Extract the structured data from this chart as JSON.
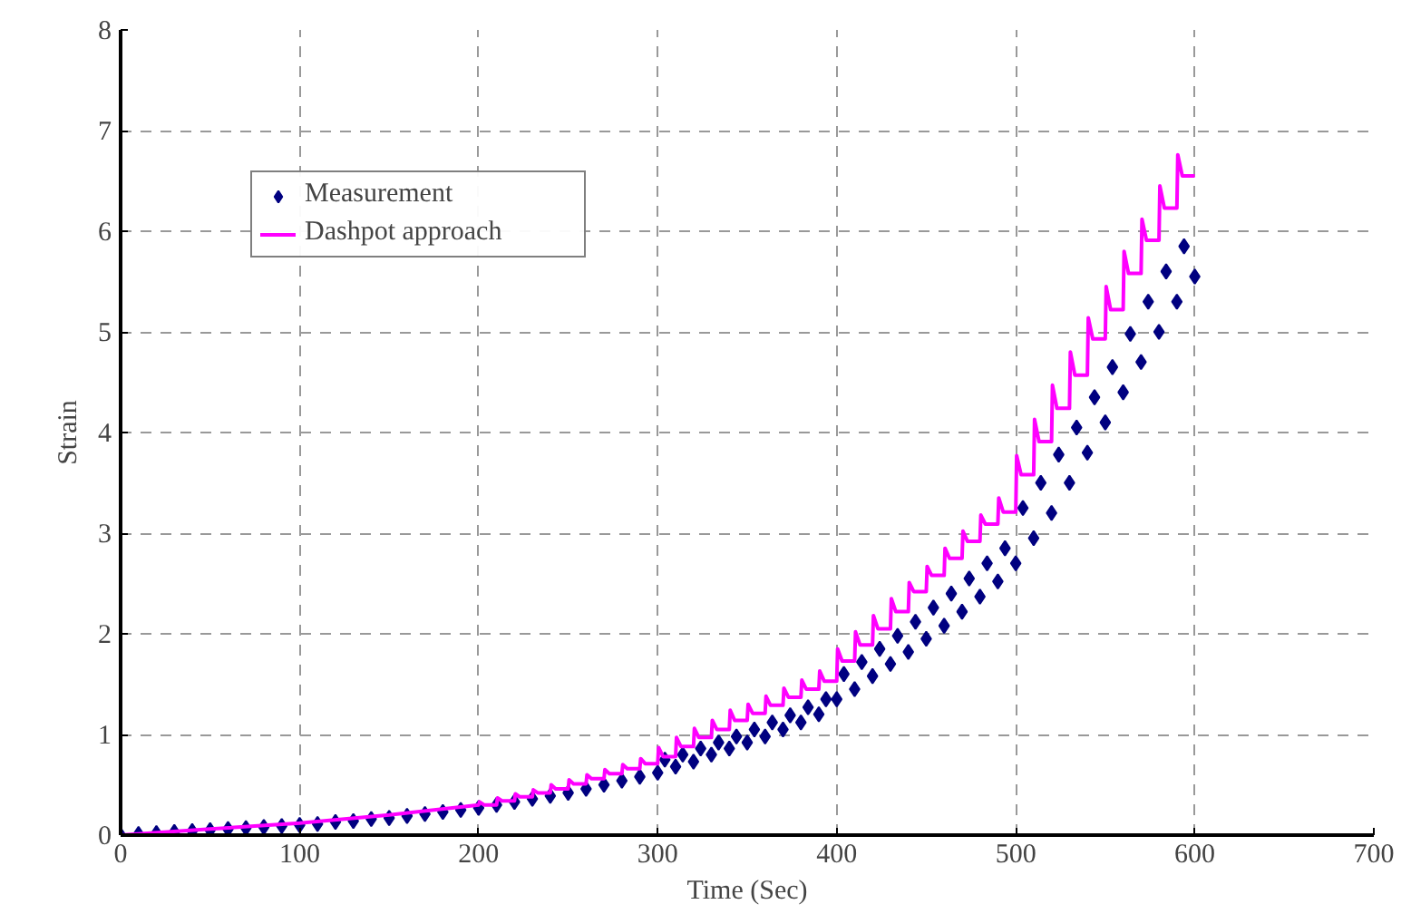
{
  "chart_data": {
    "type": "line",
    "xlabel": "Time (Sec)",
    "ylabel": "Strain",
    "xlim": [
      0,
      700
    ],
    "ylim": [
      0,
      8
    ],
    "xticks": [
      0,
      100,
      200,
      300,
      400,
      500,
      600,
      700
    ],
    "yticks": [
      0,
      1,
      2,
      3,
      4,
      5,
      6,
      7,
      8
    ],
    "grid": true,
    "legend": "top left",
    "series": [
      {
        "name": "Measurement",
        "type": "scatter",
        "marker": "diamond",
        "color": "#000080",
        "x": [
          0,
          10,
          20,
          30,
          40,
          50,
          60,
          70,
          80,
          90,
          100,
          110,
          120,
          130,
          140,
          150,
          160,
          170,
          180,
          190,
          200,
          210,
          220,
          230,
          240,
          250,
          260,
          270,
          280,
          290,
          300,
          304,
          310,
          314,
          320,
          324,
          330,
          334,
          340,
          344,
          350,
          354,
          360,
          364,
          370,
          374,
          380,
          384,
          390,
          394,
          400,
          404,
          410,
          414,
          420,
          424,
          430,
          434,
          440,
          444,
          450,
          454,
          460,
          464,
          470,
          474,
          480,
          484,
          490,
          494,
          500,
          504,
          510,
          514,
          520,
          524,
          530,
          534,
          540,
          544,
          550,
          554,
          560,
          564,
          570,
          574,
          580,
          584,
          590,
          594,
          600
        ],
        "values": [
          0,
          0.01,
          0.02,
          0.03,
          0.04,
          0.05,
          0.06,
          0.07,
          0.08,
          0.09,
          0.1,
          0.11,
          0.13,
          0.14,
          0.16,
          0.17,
          0.19,
          0.21,
          0.23,
          0.25,
          0.27,
          0.3,
          0.33,
          0.36,
          0.39,
          0.42,
          0.46,
          0.5,
          0.54,
          0.58,
          0.62,
          0.75,
          0.68,
          0.8,
          0.73,
          0.86,
          0.8,
          0.92,
          0.86,
          0.98,
          0.92,
          1.05,
          0.98,
          1.12,
          1.05,
          1.19,
          1.12,
          1.27,
          1.2,
          1.35,
          1.35,
          1.6,
          1.45,
          1.72,
          1.58,
          1.85,
          1.7,
          1.98,
          1.82,
          2.12,
          1.95,
          2.26,
          2.08,
          2.4,
          2.22,
          2.55,
          2.37,
          2.7,
          2.52,
          2.85,
          2.7,
          3.25,
          2.95,
          3.5,
          3.2,
          3.78,
          3.5,
          4.05,
          3.8,
          4.35,
          4.1,
          4.65,
          4.4,
          4.98,
          4.7,
          5.3,
          5.0,
          5.6,
          5.3,
          5.85,
          5.55
        ]
      },
      {
        "name": "Dashpot approach",
        "color": "#ff00ff",
        "x": [
          0,
          50,
          100,
          150,
          200,
          200.5,
          203,
          210,
          210.5,
          213,
          220,
          220.5,
          223,
          230,
          230.5,
          233,
          240,
          240.5,
          243,
          250,
          250.5,
          253,
          260,
          260.5,
          263,
          270,
          270.5,
          273,
          280,
          280.5,
          283,
          290,
          290.5,
          293,
          300,
          300.5,
          303,
          310,
          310.5,
          313,
          320,
          320.5,
          323,
          330,
          330.5,
          333,
          340,
          340.5,
          343,
          350,
          350.5,
          353,
          360,
          360.5,
          363,
          370,
          370.5,
          373,
          380,
          380.5,
          383,
          390,
          390.5,
          393,
          400,
          400.5,
          403,
          410,
          410.5,
          413,
          420,
          420.5,
          423,
          430,
          430.5,
          433,
          440,
          440.5,
          443,
          450,
          450.5,
          453,
          460,
          460.5,
          463,
          470,
          470.5,
          473,
          480,
          480.5,
          483,
          490,
          490.5,
          493,
          500,
          500.5,
          503,
          510,
          510.5,
          513,
          520,
          520.5,
          523,
          530,
          530.5,
          533,
          540,
          540.5,
          543,
          550,
          550.5,
          553,
          560,
          560.5,
          563,
          570,
          570.5,
          573,
          580,
          580.5,
          583,
          590,
          590.5,
          593,
          600
        ],
        "values": [
          0,
          0.06,
          0.12,
          0.2,
          0.3,
          0.33,
          0.3,
          0.3,
          0.37,
          0.34,
          0.34,
          0.41,
          0.38,
          0.38,
          0.45,
          0.42,
          0.42,
          0.5,
          0.46,
          0.46,
          0.55,
          0.51,
          0.51,
          0.6,
          0.56,
          0.56,
          0.65,
          0.61,
          0.61,
          0.7,
          0.66,
          0.66,
          0.76,
          0.71,
          0.71,
          0.87,
          0.78,
          0.78,
          0.97,
          0.88,
          0.88,
          1.06,
          0.97,
          0.97,
          1.14,
          1.05,
          1.05,
          1.24,
          1.14,
          1.14,
          1.3,
          1.21,
          1.21,
          1.38,
          1.29,
          1.29,
          1.46,
          1.37,
          1.37,
          1.54,
          1.45,
          1.45,
          1.63,
          1.53,
          1.53,
          1.85,
          1.73,
          1.73,
          2.02,
          1.89,
          1.89,
          2.18,
          2.05,
          2.05,
          2.35,
          2.22,
          2.22,
          2.51,
          2.42,
          2.42,
          2.67,
          2.58,
          2.58,
          2.85,
          2.75,
          2.75,
          3.02,
          2.92,
          2.92,
          3.18,
          3.09,
          3.09,
          3.35,
          3.21,
          3.21,
          3.77,
          3.58,
          3.58,
          4.13,
          3.91,
          3.91,
          4.47,
          4.24,
          4.24,
          4.8,
          4.57,
          4.57,
          5.14,
          4.93,
          4.93,
          5.45,
          5.22,
          5.22,
          5.8,
          5.58,
          5.58,
          6.12,
          5.91,
          5.91,
          6.45,
          6.23,
          6.23,
          6.76,
          6.55,
          6.55
        ]
      }
    ]
  }
}
